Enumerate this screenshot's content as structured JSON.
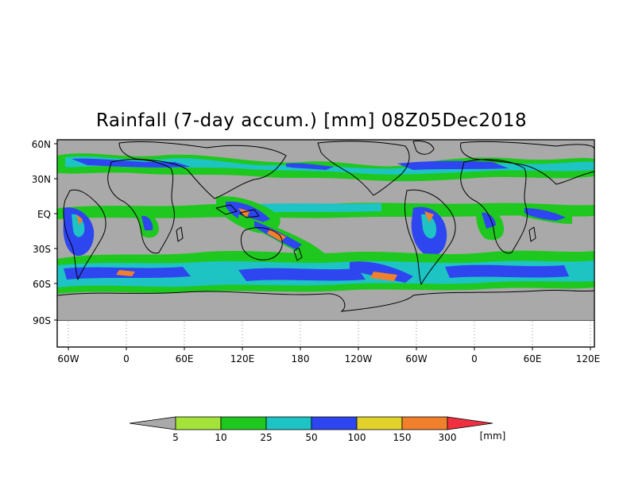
{
  "title": "Rainfall (7-day accum.) [mm] 08Z05Dec2018",
  "map": {
    "lat_labels": [
      "60N",
      "30N",
      "EQ",
      "30S",
      "60S",
      "90S"
    ],
    "lon_labels": [
      "60W",
      "0",
      "60E",
      "120E",
      "180",
      "120W",
      "60W",
      "0",
      "60E",
      "120E"
    ],
    "ocean_color": "#a9a9a9",
    "coast_color": "#000000"
  },
  "colorbar": {
    "unit": "[mm]",
    "bins": [
      {
        "color": "#a9a9a9"
      },
      {
        "color": "#a3e33a"
      },
      {
        "color": "#1ec81e"
      },
      {
        "color": "#1ec3c3"
      },
      {
        "color": "#2e46f0"
      },
      {
        "color": "#e1d12b"
      },
      {
        "color": "#f0802b"
      },
      {
        "color": "#f03040"
      }
    ],
    "tick_labels": [
      "5",
      "10",
      "25",
      "50",
      "100",
      "150",
      "300"
    ]
  }
}
